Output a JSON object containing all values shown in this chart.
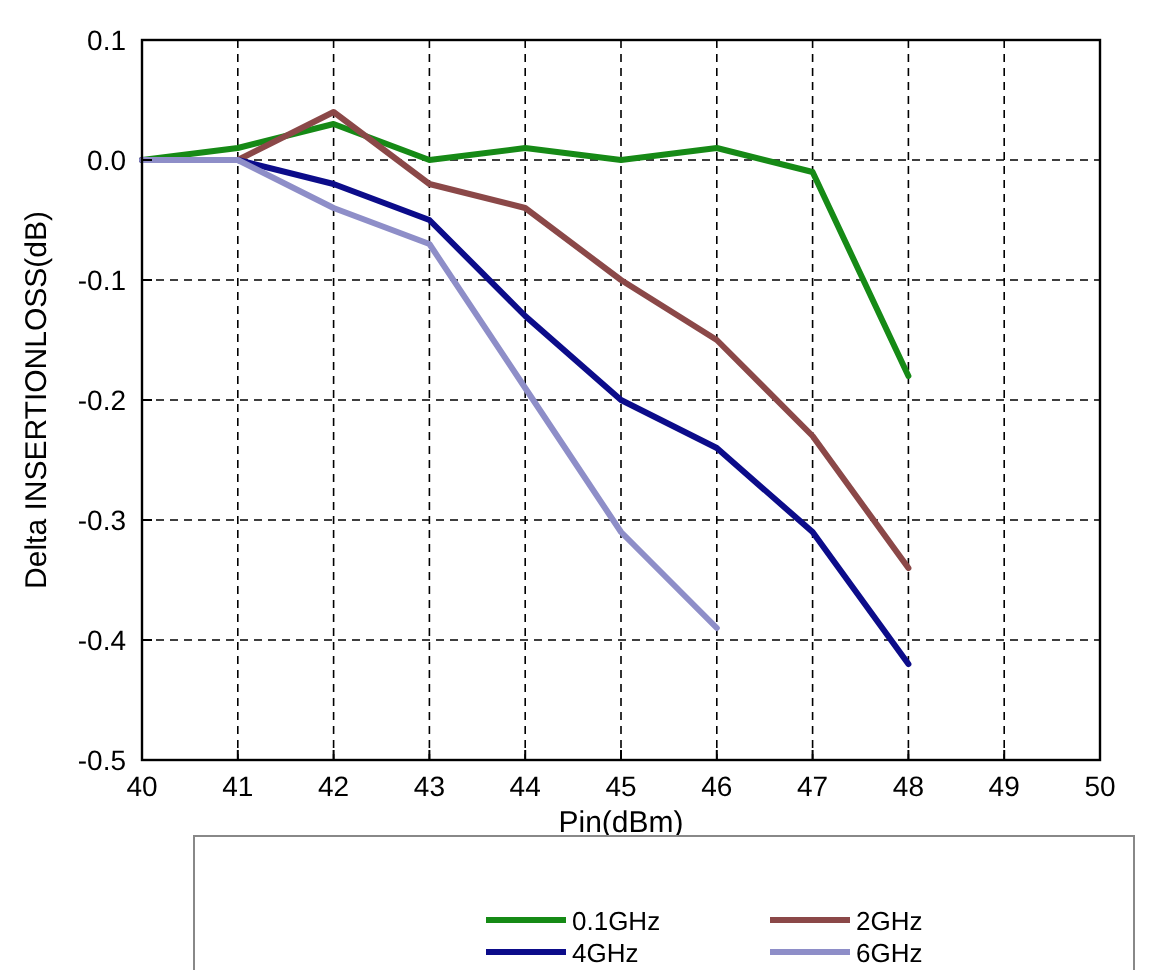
{
  "chart_data": {
    "type": "line",
    "xlabel": "Pin(dBm)",
    "ylabel": "Delta INSERTIONLOSS(dB)",
    "x": [
      40,
      41,
      42,
      43,
      44,
      45,
      46,
      47,
      48
    ],
    "series": [
      {
        "name": "0.1GHz",
        "color": "#168a16",
        "values": [
          0,
          0.01,
          0.03,
          0,
          0.01,
          0,
          0.01,
          -0.01,
          -0.18
        ]
      },
      {
        "name": "2GHz",
        "color": "#8b4848",
        "values": [
          0,
          0,
          0.04,
          -0.02,
          -0.04,
          -0.1,
          -0.15,
          -0.23,
          -0.34
        ]
      },
      {
        "name": "4GHz",
        "color": "#0c0c8a",
        "values": [
          0,
          0,
          -0.02,
          -0.05,
          -0.13,
          -0.2,
          -0.24,
          -0.31,
          -0.42
        ]
      },
      {
        "name": "6GHz",
        "color": "#8e8ec8",
        "values": [
          0,
          0,
          -0.04,
          -0.07,
          -0.19,
          -0.31,
          -0.39,
          null,
          null
        ]
      }
    ],
    "xlim": [
      40,
      50
    ],
    "xticks": [
      40,
      41,
      42,
      43,
      44,
      45,
      46,
      47,
      48,
      49,
      50
    ],
    "ylim": [
      -0.5,
      0.1
    ],
    "yticks": [
      {
        "value": -0.5,
        "label": "-0.5"
      },
      {
        "value": -0.4,
        "label": "-0.4"
      },
      {
        "value": -0.3,
        "label": "-0.3"
      },
      {
        "value": -0.2,
        "label": "-0.2"
      },
      {
        "value": -0.1,
        "label": "-0.1"
      },
      {
        "value": 0,
        "label": "0.0"
      },
      {
        "value": 0.1,
        "label": "0.1"
      }
    ],
    "grid": true,
    "legend": "bottom",
    "marker": "none",
    "line_style": "solid"
  }
}
